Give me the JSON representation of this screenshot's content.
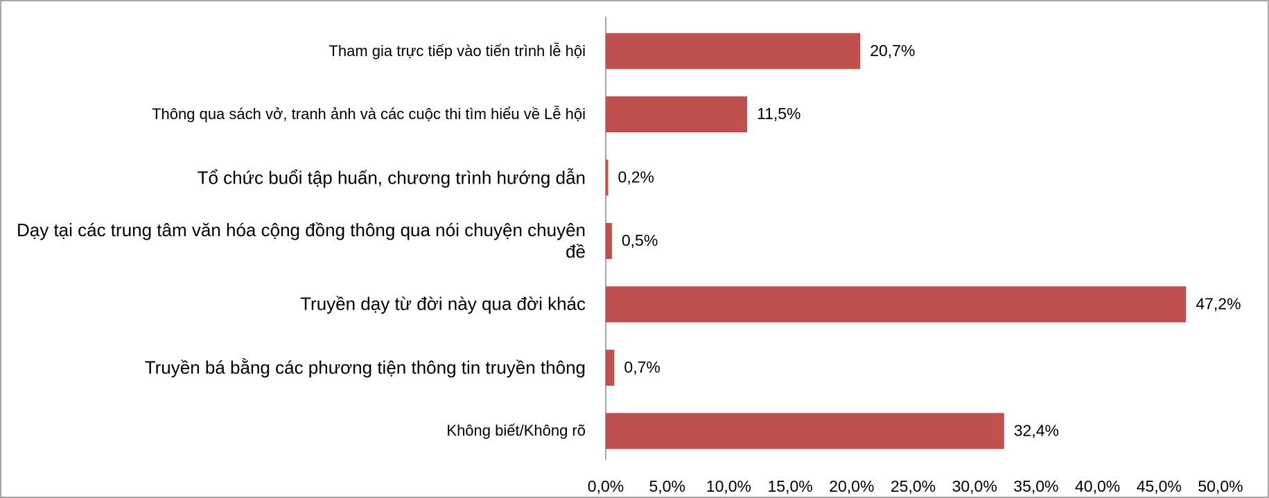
{
  "chart_data": {
    "type": "bar",
    "orientation": "horizontal",
    "categories": [
      "Tham gia trực tiếp vào tiến trình lễ hội",
      "Thông qua sách vở, tranh ảnh và các cuộc thi tìm hiểu về Lễ hội",
      "Tổ chức buổi tập huấn, chương trình hướng dẫn",
      "Dạy tại các trung tâm văn hóa cộng đồng thông qua nói chuyện chuyên đề",
      "Truyền dạy từ đời này qua đời khác",
      "Truyền bá bằng các phương tiện thông tin truyền thông",
      "Không biết/Không rõ"
    ],
    "values": [
      20.7,
      11.5,
      0.2,
      0.5,
      47.2,
      0.7,
      32.4
    ],
    "value_labels": [
      "20,7%",
      "11,5%",
      "0,2%",
      "0,5%",
      "47,2%",
      "0,7%",
      "32,4%"
    ],
    "color": "#c0504d",
    "xlim": [
      0,
      50
    ],
    "xticks": [
      {
        "value": 0,
        "label": "0,0%"
      },
      {
        "value": 5,
        "label": "5,0%"
      },
      {
        "value": 10,
        "label": "10,0%"
      },
      {
        "value": 15,
        "label": "15,0%"
      },
      {
        "value": 20,
        "label": "20,0%"
      },
      {
        "value": 25,
        "label": "25,0%"
      },
      {
        "value": 30,
        "label": "30,0%"
      },
      {
        "value": 35,
        "label": "35,0%"
      },
      {
        "value": 40,
        "label": "40,0%"
      },
      {
        "value": 45,
        "label": "45,0%"
      },
      {
        "value": 50,
        "label": "50,0%"
      }
    ],
    "grid": false
  }
}
